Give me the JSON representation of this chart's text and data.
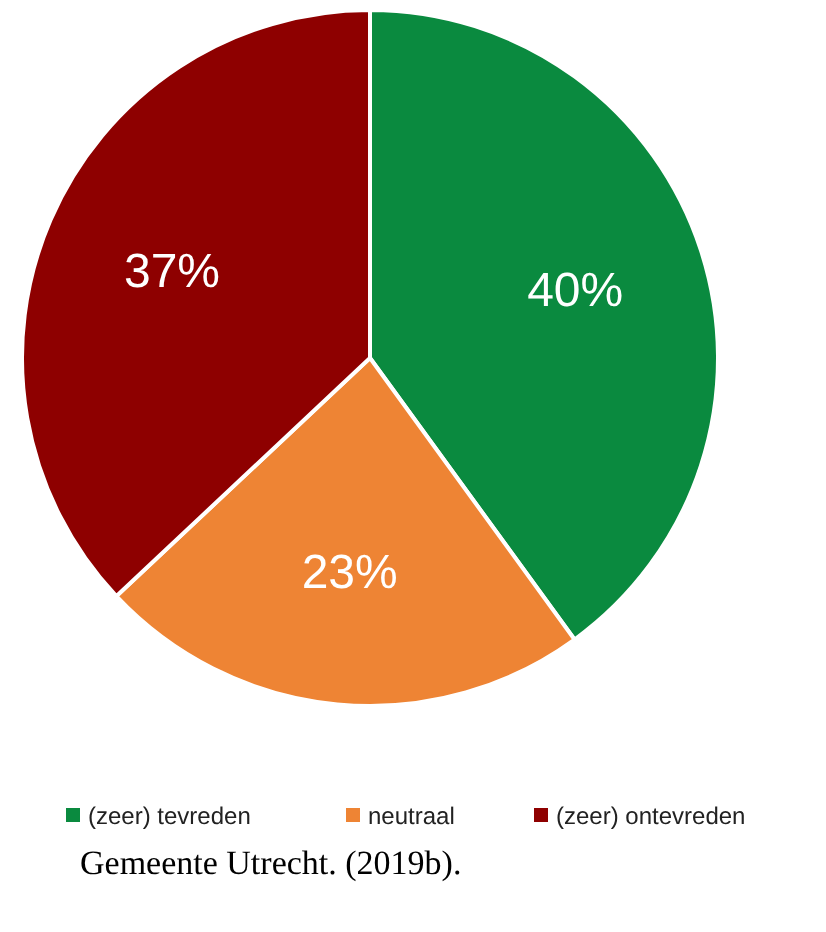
{
  "chart_data": {
    "type": "pie",
    "categories": [
      "(zeer) tevreden",
      "neutraal",
      "(zeer) ontevreden"
    ],
    "values": [
      40,
      23,
      37
    ],
    "colors": [
      "#0a8a3f",
      "#ee8434",
      "#8e0000"
    ],
    "value_labels": [
      "40%",
      "23%",
      "37%"
    ],
    "legend": "bottom",
    "annotations": [
      "Gemeente Utrecht. (2019b)."
    ]
  }
}
